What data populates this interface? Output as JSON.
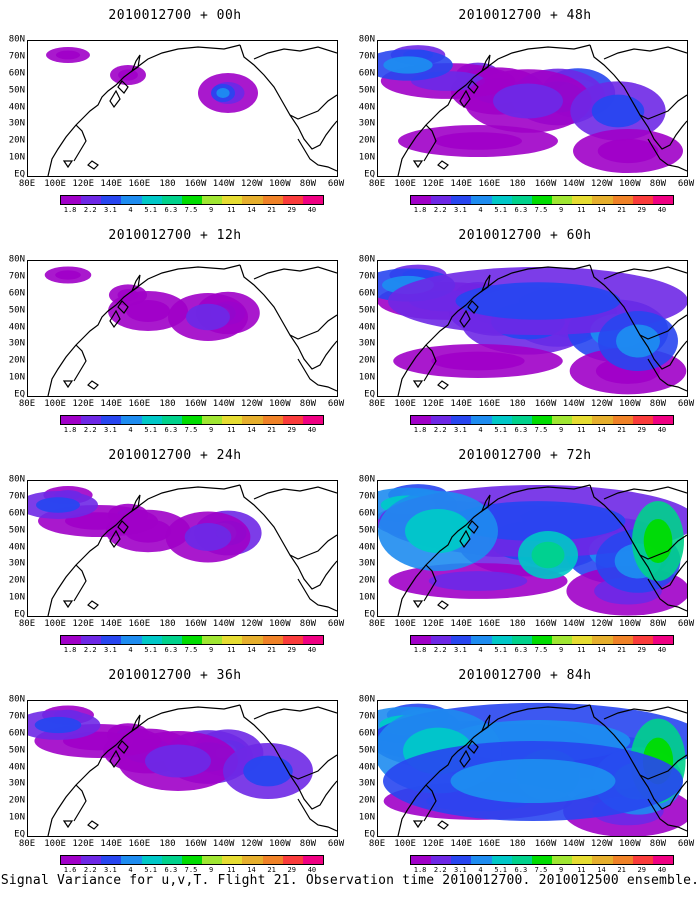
{
  "panels": [
    {
      "title": "2010012700 + 00h",
      "intensity": 0
    },
    {
      "title": "2010012700 + 48h",
      "intensity": 4
    },
    {
      "title": "2010012700 + 12h",
      "intensity": 1
    },
    {
      "title": "2010012700 + 60h",
      "intensity": 5
    },
    {
      "title": "2010012700 + 24h",
      "intensity": 2
    },
    {
      "title": "2010012700 + 72h",
      "intensity": 6
    },
    {
      "title": "2010012700 + 36h",
      "intensity": 3
    },
    {
      "title": "2010012700 + 84h",
      "intensity": 7
    }
  ],
  "lat_labels": [
    "80N",
    "70N",
    "60N",
    "50N",
    "40N",
    "30N",
    "20N",
    "10N",
    "EQ"
  ],
  "lon_labels": [
    "80E",
    "100E",
    "120E",
    "140E",
    "160E",
    "180",
    "160W",
    "140W",
    "120W",
    "100W",
    "80W",
    "60W"
  ],
  "colorbar_labels": [
    "1.8",
    "2.2",
    "3.1",
    "4",
    "5.1",
    "6.3",
    "7.5",
    "9",
    "11",
    "14",
    "21",
    "29",
    "40"
  ],
  "colorbar_labels_bottom_left": [
    "1.6",
    "2.2",
    "3.1",
    "4",
    "5.1",
    "6.3",
    "7.5",
    "9",
    "11",
    "14",
    "21",
    "29",
    "40"
  ],
  "colorbar_colors": [
    "#a000c8",
    "#6e28e6",
    "#2846f0",
    "#1e8cf0",
    "#00c8c8",
    "#00d28c",
    "#00dc00",
    "#a0e632",
    "#e6dc32",
    "#e6af2d",
    "#f08228",
    "#fa3c3c",
    "#f00082"
  ],
  "caption": "Signal Variance for u,v,T. Flight 21. Observation time 2010012700. 2010012500 ensemble."
}
